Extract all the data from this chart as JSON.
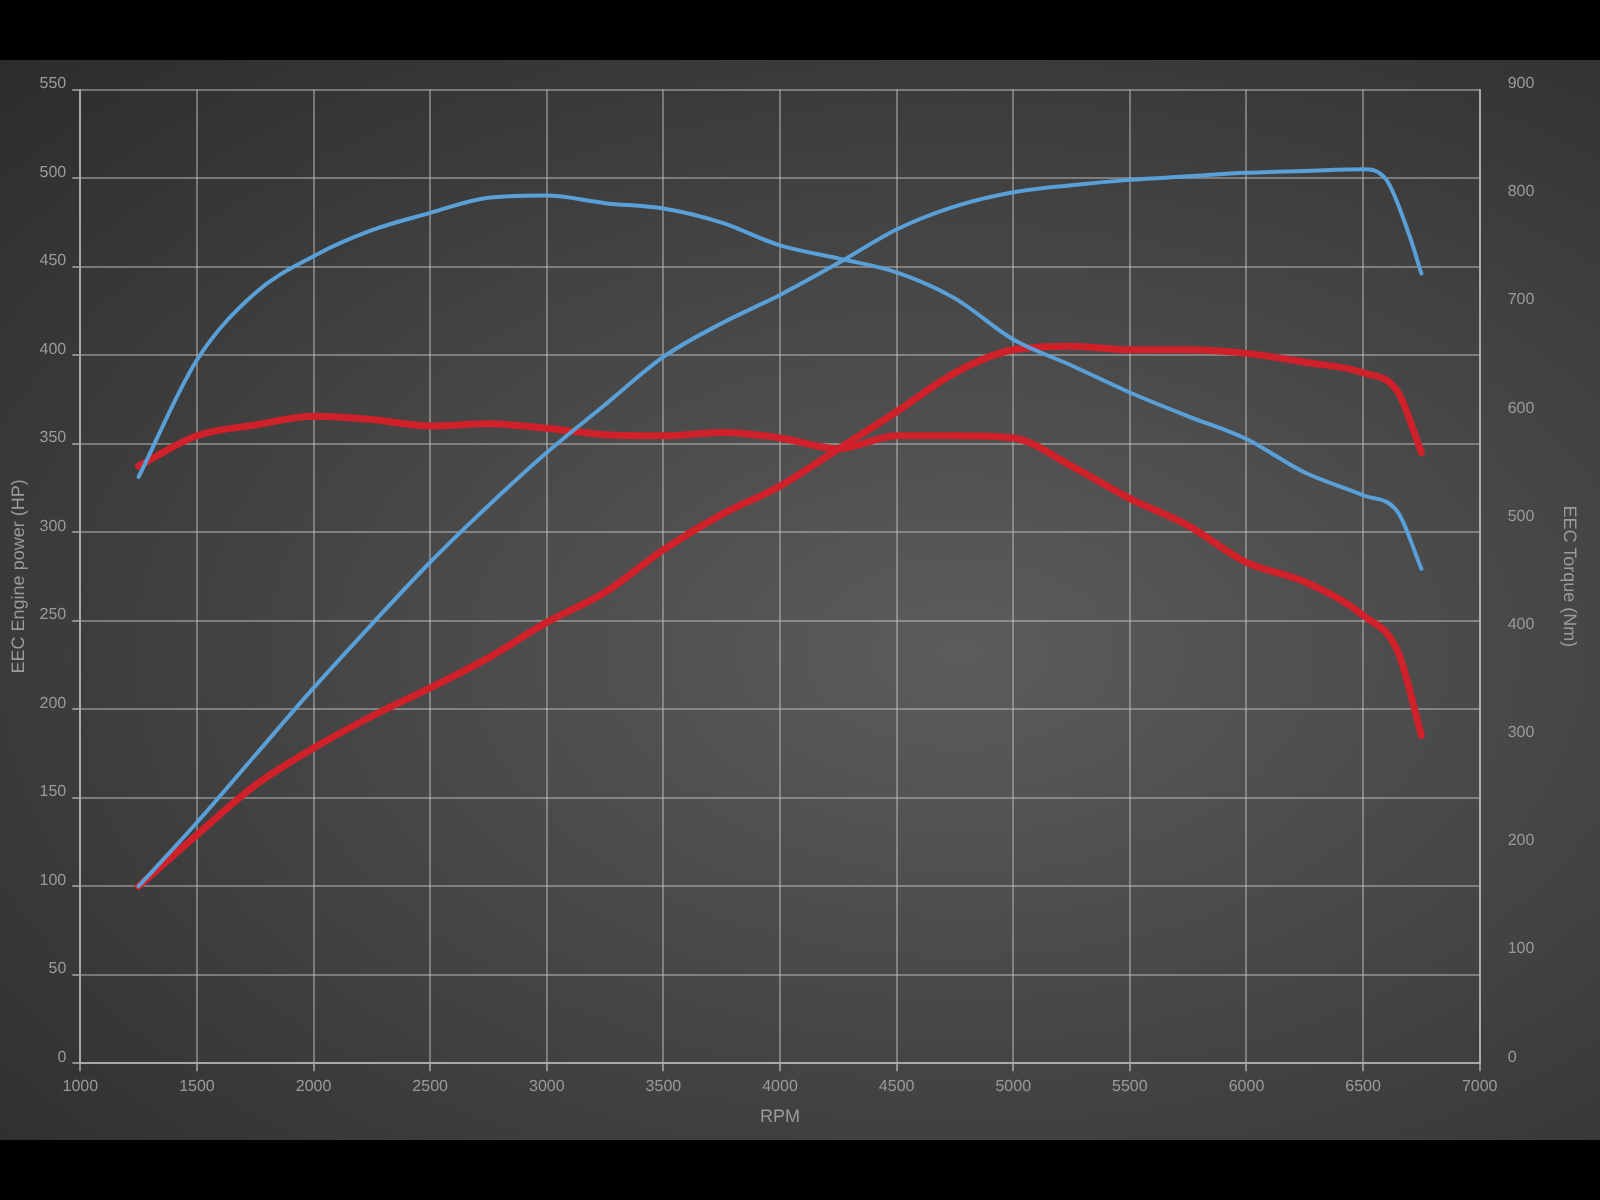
{
  "chart_data": {
    "type": "line",
    "xlabel": "RPM",
    "ylabel": "EEC Engine power (HP)",
    "y2label": "EEC Torque (Nm)",
    "xlim": [
      1000,
      7000
    ],
    "xticks": [
      1000,
      1500,
      2000,
      2500,
      3000,
      3500,
      4000,
      4500,
      5000,
      5500,
      6000,
      6500,
      7000
    ],
    "ylim": [
      0,
      550
    ],
    "yticks": [
      0,
      50,
      100,
      150,
      200,
      250,
      300,
      350,
      400,
      450,
      500,
      550
    ],
    "y2lim": [
      0,
      900
    ],
    "y2ticks": [
      0,
      100,
      200,
      300,
      400,
      500,
      600,
      700,
      800,
      900
    ],
    "grid": true,
    "legend": false,
    "marker": "none",
    "line_style": "solid",
    "series": [
      {
        "color": "#5aa0d8",
        "x": [
          1250,
          1500,
          1750,
          2000,
          2250,
          2500,
          2750,
          3000,
          3250,
          3500,
          3750,
          4000,
          4250,
          4500,
          4750,
          5000,
          5250,
          5500,
          5750,
          6000,
          6250,
          6500,
          6600,
          6700,
          6750
        ],
        "values": [
          100,
          136,
          174,
          212,
          248,
          283,
          315,
          345,
          372,
          399,
          418,
          434,
          452,
          471,
          484,
          492,
          496,
          499,
          501,
          503,
          504,
          505,
          499,
          467,
          446
        ]
      },
      {
        "color": "#5aa0d8",
        "axis": "y2",
        "x": [
          1250,
          1500,
          1750,
          2000,
          2250,
          2500,
          2750,
          3000,
          3250,
          3500,
          3750,
          4000,
          4250,
          4500,
          4750,
          5000,
          5250,
          5500,
          5750,
          6000,
          6250,
          6500,
          6650,
          6750
        ],
        "values": [
          542,
          650,
          712,
          746,
          770,
          786,
          800,
          802,
          795,
          790,
          777,
          756,
          744,
          731,
          707,
          669,
          645,
          620,
          598,
          577,
          546,
          525,
          509,
          457
        ]
      },
      {
        "color": "#d0202a",
        "x": [
          1250,
          1500,
          1750,
          2000,
          2250,
          2500,
          2750,
          3000,
          3250,
          3500,
          3750,
          4000,
          4250,
          4500,
          4750,
          5000,
          5250,
          5500,
          5750,
          6000,
          6250,
          6500,
          6650,
          6750
        ],
        "values": [
          100,
          129,
          157,
          178,
          196,
          212,
          229,
          249,
          266,
          290,
          310,
          326,
          347,
          368,
          390,
          403,
          405,
          403,
          403,
          401,
          396,
          390,
          379,
          345
        ]
      },
      {
        "color": "#d0202a",
        "axis": "y2",
        "x": [
          1250,
          1500,
          1750,
          2000,
          2250,
          2500,
          2750,
          3000,
          3250,
          3500,
          3750,
          4000,
          4250,
          4500,
          4750,
          5000,
          5250,
          5500,
          5750,
          6000,
          6250,
          6500,
          6650,
          6750
        ],
        "values": [
          552,
          580,
          590,
          598,
          595,
          589,
          591,
          587,
          581,
          580,
          583,
          578,
          568,
          580,
          580,
          578,
          552,
          522,
          497,
          463,
          445,
          414,
          380,
          303
        ]
      }
    ]
  }
}
